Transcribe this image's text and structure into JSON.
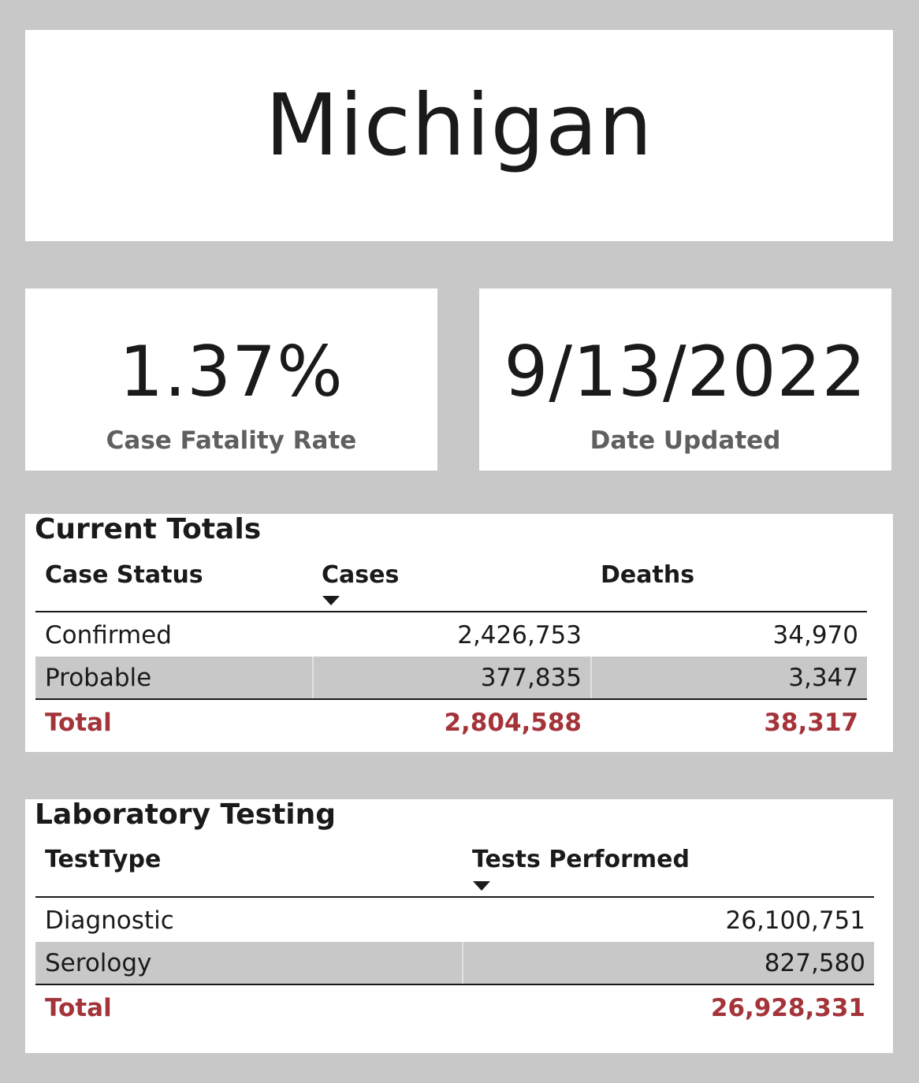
{
  "header": {
    "title": "Michigan"
  },
  "kpis": {
    "case_fatality_rate": {
      "value": "1.37%",
      "label": "Case Fatality Rate"
    },
    "date_updated": {
      "value": "9/13/2022",
      "label": "Date Updated"
    }
  },
  "current_totals": {
    "title": "Current Totals",
    "columns": [
      "Case Status",
      "Cases",
      "Deaths"
    ],
    "sort_column": "Cases",
    "rows": [
      {
        "status": "Confirmed",
        "cases": "2,426,753",
        "deaths": "34,970"
      },
      {
        "status": "Probable",
        "cases": "377,835",
        "deaths": "3,347"
      }
    ],
    "total": {
      "label": "Total",
      "cases": "2,804,588",
      "deaths": "38,317"
    }
  },
  "laboratory_testing": {
    "title": "Laboratory Testing",
    "columns": [
      "TestType",
      "Tests Performed"
    ],
    "sort_column": "Tests Performed",
    "rows": [
      {
        "type": "Diagnostic",
        "tests": "26,100,751"
      },
      {
        "type": "Serology",
        "tests": "827,580"
      }
    ],
    "total": {
      "label": "Total",
      "tests": "26,928,331"
    }
  },
  "colors": {
    "background": "#c8c8c8",
    "total_text": "#a4343a",
    "kpi_label": "#5f5f5f",
    "alt_row": "#c8c8c8"
  }
}
